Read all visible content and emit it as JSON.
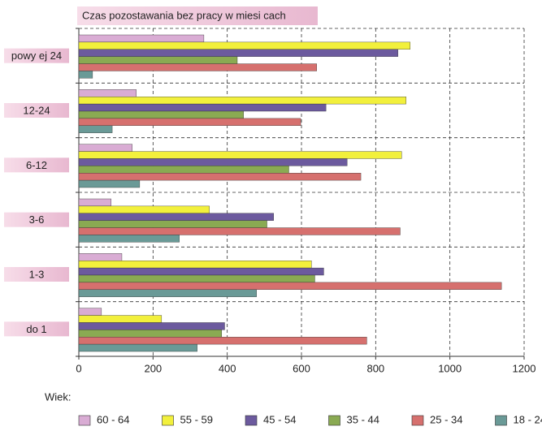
{
  "chart_data": {
    "type": "hbar",
    "title": "Czas pozostawania bez pracy w miesi cach",
    "legend_title": "Wiek:",
    "categories": [
      "powy ej 24",
      "12-24",
      "6-12",
      "3-6",
      "1-3",
      "do 1"
    ],
    "series": [
      {
        "name": "60 - 64",
        "color": "#d9acd4",
        "values": [
          337,
          155,
          144,
          87,
          116,
          61
        ]
      },
      {
        "name": "55 - 59",
        "color": "#f2f03c",
        "values": [
          893,
          882,
          870,
          352,
          627,
          223
        ]
      },
      {
        "name": "45 - 54",
        "color": "#6c5a9e",
        "values": [
          860,
          666,
          723,
          525,
          660,
          393
        ]
      },
      {
        "name": "35 - 44",
        "color": "#8aaa52",
        "values": [
          427,
          444,
          566,
          507,
          636,
          385
        ]
      },
      {
        "name": "25 - 34",
        "color": "#d6706e",
        "values": [
          641,
          598,
          760,
          866,
          1139,
          776
        ]
      },
      {
        "name": "18 - 24",
        "color": "#6a9a97",
        "values": [
          37,
          90,
          164,
          271,
          479,
          319
        ]
      }
    ],
    "xlim": [
      0,
      1200
    ],
    "xticks": [
      0,
      200,
      400,
      600,
      800,
      1000,
      1200
    ],
    "grid": true
  }
}
